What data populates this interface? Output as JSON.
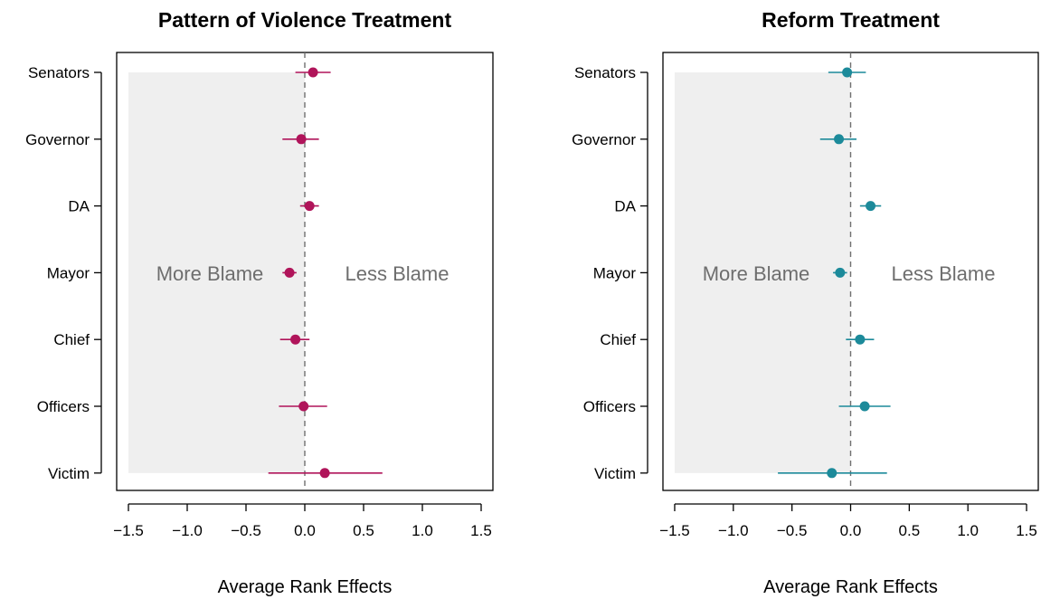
{
  "chart_data": [
    {
      "type": "scatter",
      "title": "Pattern of Violence Treatment",
      "xlabel": "Average Rank Effects",
      "ylabel": "",
      "xlim": [
        -1.6,
        1.6
      ],
      "xticks": [
        -1.5,
        -1.0,
        -0.5,
        0.0,
        0.5,
        1.0,
        1.5
      ],
      "xtick_labels": [
        "−1.5",
        "−1.0",
        "−0.5",
        "0.0",
        "0.5",
        "1.0",
        "1.5"
      ],
      "categories": [
        "Senators",
        "Governor",
        "DA",
        "Mayor",
        "Chief",
        "Officers",
        "Victim"
      ],
      "estimates": [
        0.07,
        -0.03,
        0.04,
        -0.13,
        -0.08,
        -0.01,
        0.17
      ],
      "ci_low": [
        -0.08,
        -0.19,
        -0.04,
        -0.19,
        -0.21,
        -0.22,
        -0.31
      ],
      "ci_high": [
        0.22,
        0.12,
        0.12,
        -0.07,
        0.04,
        0.19,
        0.66
      ],
      "annotations": {
        "left": "More Blame",
        "right": "Less Blame"
      },
      "shaded_region": [
        -1.5,
        0.0
      ],
      "reference_line": 0.0,
      "color": "#b0145a",
      "shade_color": "#efefef"
    },
    {
      "type": "scatter",
      "title": "Reform Treatment",
      "xlabel": "Average Rank Effects",
      "ylabel": "",
      "xlim": [
        -1.6,
        1.6
      ],
      "xticks": [
        -1.5,
        -1.0,
        -0.5,
        0.0,
        0.5,
        1.0,
        1.5
      ],
      "xtick_labels": [
        "−1.5",
        "−1.0",
        "−0.5",
        "0.0",
        "0.5",
        "1.0",
        "1.5"
      ],
      "categories": [
        "Senators",
        "Governor",
        "DA",
        "Mayor",
        "Chief",
        "Officers",
        "Victim"
      ],
      "estimates": [
        -0.03,
        -0.1,
        0.17,
        -0.09,
        0.08,
        0.12,
        -0.16
      ],
      "ci_low": [
        -0.19,
        -0.26,
        0.08,
        -0.15,
        -0.04,
        -0.1,
        -0.62
      ],
      "ci_high": [
        0.13,
        0.05,
        0.26,
        -0.03,
        0.2,
        0.34,
        0.31
      ],
      "annotations": {
        "left": "More Blame",
        "right": "Less Blame"
      },
      "shaded_region": [
        -1.5,
        0.0
      ],
      "reference_line": 0.0,
      "color": "#1c8a9a",
      "shade_color": "#efefef"
    }
  ]
}
